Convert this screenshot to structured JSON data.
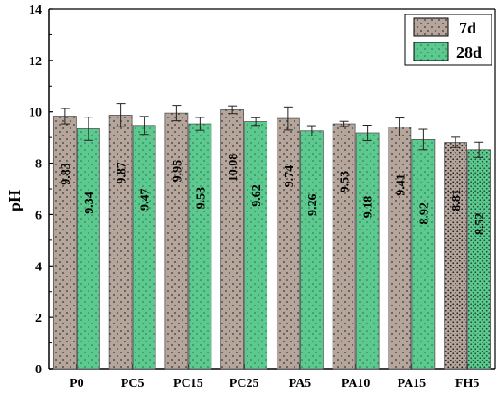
{
  "chart_data": {
    "type": "bar",
    "categories": [
      "P0",
      "PC5",
      "PC15",
      "PC25",
      "PA5",
      "PA10",
      "PA15",
      "FH5"
    ],
    "series": [
      {
        "name": "7d",
        "values": [
          9.83,
          9.87,
          9.95,
          10.08,
          9.74,
          9.53,
          9.41,
          8.81
        ],
        "labels": [
          "9.83",
          "9.87",
          "9.95",
          "10.08",
          "9.74",
          "9.53",
          "9.41",
          "8.81"
        ],
        "errors": [
          0.3,
          0.45,
          0.3,
          0.15,
          0.45,
          0.1,
          0.35,
          0.2
        ],
        "color": "#b5a59a"
      },
      {
        "name": "28d",
        "values": [
          9.34,
          9.47,
          9.53,
          9.62,
          9.26,
          9.18,
          8.92,
          8.52
        ],
        "labels": [
          "9.34",
          "9.47",
          "9.53",
          "9.62",
          "9.26",
          "9.18",
          "8.92",
          "8.52"
        ],
        "errors": [
          0.45,
          0.35,
          0.25,
          0.15,
          0.2,
          0.3,
          0.4,
          0.3
        ],
        "color": "#5cc98f"
      }
    ],
    "ylabel": "pH",
    "xlabel": "",
    "ylim": [
      0,
      14
    ],
    "yticks": [
      "0",
      "2",
      "4",
      "6",
      "8",
      "10",
      "12",
      "14"
    ],
    "legend_position": "top-right",
    "grid": false
  }
}
